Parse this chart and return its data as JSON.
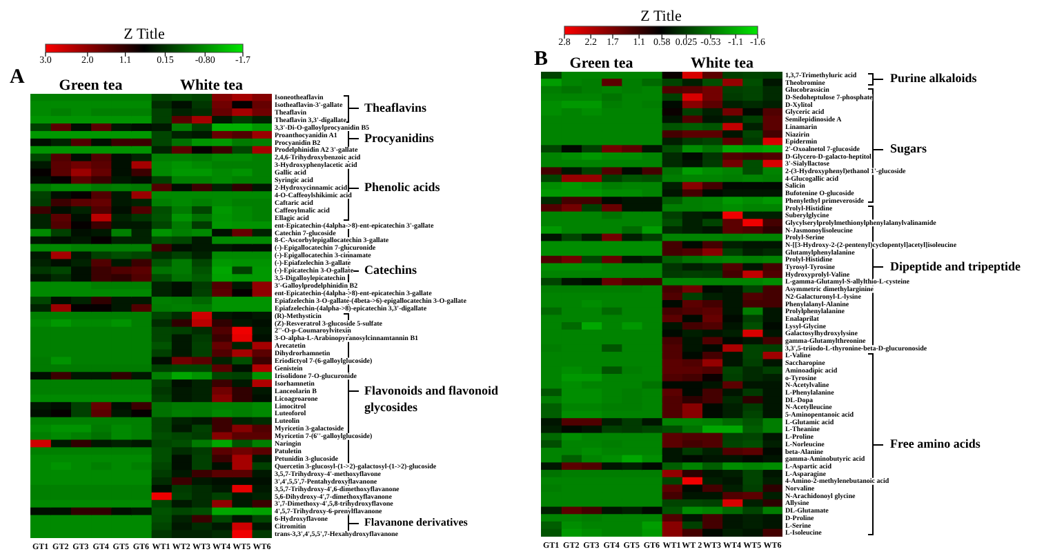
{
  "chart_data": [
    {
      "type": "heatmap",
      "title": "A",
      "clabel": "Z Title",
      "clim": [
        3,
        -1.7
      ],
      "cticks": [
        {
          "value": 3,
          "label": "3.0"
        },
        {
          "value": 2,
          "label": "2.0"
        },
        1.1,
        0.15,
        {
          "value": -0.8,
          "label": "-0.80"
        },
        -1.7
      ],
      "annotations": [
        "Green tea",
        "White tea",
        "Theaflavins",
        "Procyanidins",
        "Phenolic acids",
        "Catechins",
        "Flavonoids and flavonoid glycosides",
        "Flavanone derivatives"
      ],
      "categories": [
        "GT1",
        "GT2",
        "GT3",
        "GT4",
        "GT5",
        "GT6",
        "WT1",
        "WT2",
        "WT3",
        "WT4",
        "WT5",
        "WT6"
      ],
      "y_categories": [
        "Isoneotheaflavin",
        "Isotheaflavin-3'-gallate",
        "Theaflavin",
        "Theaflavin 3,3'-digallate",
        "3,3'-Di-O-galloylprocyanidin B5",
        "Proanthocyanidin A1",
        "Procyanidin B2",
        "Prodelphinidin A2 3'-gallate",
        "2,4,6-Trihydroxybenzoic acid",
        "3-Hydroxyphenylacetic acid",
        "Gallic acid",
        "Syringic acid",
        "2-Hydroxycinnamic acid",
        "4-O-Caffeoylshikimic acid",
        "Caftaric acid",
        "Caffeoylmalic acid",
        "Ellagic acid",
        "ent-Epicatechin-(4alpha->8)-ent-epicatechin 3'-gallate",
        "Catechin 7-glucoside",
        "8-C-Ascorbylepigallocatechin 3-gallate",
        "(-)-Epigallocatechin 7-glucuronide",
        "(-)-Epigallocatechin 3-cinnamate",
        "(-)-Epiafzelechin 3-gallate",
        "(-)-Epicatechin 3-O-gallate",
        "3,5-Digalloylepicatechin",
        "3'-Galloylprodelphinidin B2",
        "ent-Epicatechin-(4alpha->8)-ent-epicatechin 3-gallate",
        "Epiafzelechin 3-O-gallate-(4beta->6)-epigallocatechin 3-O-gallate",
        "Epiafzelechin-(4alpha->8)-epicatechin 3,3'-digallate",
        "(R)-Methysticin",
        "(Z)-Resveratrol 3-glucoside 5-sulfate",
        "2''-O-p-Coumaroylvitexin",
        "3-O-alpha-L-Arabinopyranosylcinnamtannin B1",
        "Arecatetin",
        "Dihydrorhamnetin",
        "Eriodictyol 7-(6-galloylglucoside)",
        "Genistein",
        "Irisolidone 7-O-glucuronide",
        "Isorhamnetin",
        "Lanceolarin B",
        "Licoagroarone",
        "Limocitrol",
        "Luteoforol",
        "Luteolin",
        "Myricetin 3-galactoside",
        "Myricetin 7-(6''-galloylglucoside)",
        "Naringin",
        "Patuletin",
        "Petunidin 3-glucoside",
        "Quercetin 3-glucosyl-(1->2)-galactosyl-(1->2)-glucoside",
        "3,5,7-Trihydroxy-4'-methoxyflavone",
        "3',4',5,5',7-Pentahydroxyflavanone",
        "3,5,7-Trihydroxy-4',6-dimethoxyflavanone",
        "5,6-Dihydroxy-4',7-dimethoxyflavanone",
        "3',7-Dimethoxy-4',5,8-trihydroxyflavone",
        "4',5,7-Trihydroxy-6-prenylflavanone",
        "6-Hydroxyflavone",
        "Citromitin",
        "trans-3,3',4',5,5',7-Hexahydroxyflavanone"
      ],
      "cells": [
        [
          -0.65,
          -0.65,
          -0.65,
          -0.65,
          -0.65,
          -0.65,
          -0.05,
          -0.15,
          -0.05,
          1.9,
          2.2,
          1.9
        ],
        [
          -0.75,
          -0.75,
          -0.75,
          -0.75,
          -0.75,
          -0.75,
          0.2,
          0.5,
          0.1,
          1.7,
          0.7,
          1.6
        ],
        [
          -0.75,
          -0.65,
          -0.75,
          -0.65,
          -0.65,
          -0.65,
          0.0,
          0.3,
          0.2,
          1.6,
          2.2,
          1.7
        ],
        [
          -0.85,
          -0.85,
          -0.85,
          -0.85,
          -0.85,
          -0.85,
          0.0,
          1.5,
          2.2,
          0.4,
          0.05,
          0.3
        ],
        [
          0.0,
          1.5,
          0.5,
          1.5,
          0.4,
          0.5,
          0.4,
          -0.6,
          0.0,
          -1.15,
          -1.15,
          -0.9
        ],
        [
          -0.9,
          -0.9,
          -0.9,
          -0.9,
          -0.9,
          -0.9,
          -0.05,
          0.3,
          0.4,
          1.6,
          1.4,
          2.1
        ],
        [
          0.5,
          0.3,
          1.4,
          0.5,
          1.2,
          1.2,
          -0.05,
          -0.5,
          -0.85,
          -0.9,
          -0.6,
          -0.65
        ],
        [
          -0.85,
          -0.85,
          -0.85,
          -0.85,
          -0.85,
          -0.85,
          0.3,
          1.5,
          0.7,
          1.2,
          -0.05,
          2.2
        ],
        [
          -0.05,
          1.4,
          0.5,
          1.4,
          0.5,
          0.3,
          -0.65,
          -0.65,
          -0.6,
          -0.75,
          -0.75,
          -0.65
        ],
        [
          0.4,
          1.5,
          1.7,
          1.5,
          0.5,
          2.2,
          -0.75,
          -0.85,
          -0.75,
          -0.65,
          -0.65,
          -0.65
        ],
        [
          0.7,
          1.5,
          2.1,
          1.6,
          0.5,
          1.2,
          -0.75,
          -0.9,
          -0.9,
          -0.75,
          -0.85,
          -0.65
        ],
        [
          0.5,
          0.7,
          1.5,
          1.2,
          0.4,
          0.5,
          0.0,
          -0.65,
          -0.65,
          -0.75,
          -0.65,
          -0.65
        ],
        [
          -0.6,
          -0.75,
          -0.75,
          -0.6,
          -0.65,
          -0.6,
          1.4,
          0.5,
          1.2,
          0.3,
          1.1,
          0.4
        ],
        [
          0.0,
          0.5,
          0.7,
          1.4,
          0.4,
          2.1,
          -0.75,
          -0.75,
          -0.75,
          -0.75,
          -0.75,
          -0.75
        ],
        [
          0.05,
          1.2,
          1.5,
          1.6,
          0.4,
          0.3,
          -0.65,
          -0.75,
          -0.65,
          -0.75,
          -0.65,
          -0.65
        ],
        [
          1.2,
          0.5,
          0.3,
          1.4,
          0.5,
          1.4,
          -0.15,
          -0.6,
          -0.05,
          -0.9,
          -0.75,
          -0.65
        ],
        [
          0.3,
          1.5,
          0.5,
          2.4,
          0.3,
          0.1,
          -0.2,
          -0.85,
          -0.5,
          -0.85,
          -0.75,
          -0.65
        ],
        [
          0.3,
          1.4,
          0.7,
          1.2,
          0.4,
          0.4,
          -0.05,
          -0.6,
          0.05,
          -0.9,
          -0.85,
          -0.85
        ],
        [
          -0.75,
          0.0,
          0.5,
          0.4,
          -0.65,
          0.3,
          -0.85,
          -0.65,
          -0.75,
          0.5,
          1.6,
          0.3
        ],
        [
          0.4,
          0.5,
          0.4,
          0.7,
          0.3,
          0.3,
          -0.15,
          -0.05,
          0.4,
          -0.75,
          -0.75,
          -0.75
        ],
        [
          -0.75,
          -0.75,
          -0.65,
          -0.65,
          -0.65,
          -0.65,
          1.2,
          0.5,
          0.4,
          0.4,
          0.5,
          0.5
        ],
        [
          0.4,
          2.2,
          0.4,
          0.0,
          -0.15,
          -0.05,
          0.2,
          0.0,
          0.3,
          -0.75,
          -0.75,
          -0.75
        ],
        [
          0.3,
          0.5,
          0.3,
          1.4,
          0.4,
          1.2,
          -0.2,
          -0.6,
          -0.05,
          -0.9,
          -0.85,
          -0.85
        ],
        [
          0.1,
          -0.05,
          0.5,
          1.2,
          1.4,
          1.5,
          -0.5,
          -0.6,
          -0.2,
          -1.05,
          0.0,
          -0.9
        ],
        [
          0.4,
          0.2,
          0.5,
          1.2,
          1.1,
          1.4,
          -0.15,
          -0.5,
          -0.3,
          -1.0,
          -0.9,
          -0.9
        ],
        [
          -0.75,
          -0.75,
          -0.75,
          -0.65,
          -0.65,
          -0.65,
          0.3,
          0.5,
          0.05,
          1.4,
          0.4,
          2.0
        ],
        [
          -0.75,
          -0.75,
          -0.75,
          -0.75,
          -0.75,
          -0.75,
          0.3,
          0.5,
          0.0,
          1.5,
          0.7,
          2.0
        ],
        [
          -0.05,
          0.5,
          0.3,
          1.1,
          0.4,
          0.4,
          -0.65,
          -0.6,
          -0.4,
          -0.85,
          -0.85,
          -0.85
        ],
        [
          0.3,
          2.1,
          0.7,
          0.7,
          0.4,
          1.4,
          -0.6,
          -0.65,
          -0.6,
          -0.85,
          -0.85,
          -0.85
        ],
        [
          -0.65,
          -0.65,
          -0.65,
          -0.65,
          -0.65,
          -0.65,
          -0.05,
          0.2,
          2.6,
          0.4,
          0.5,
          0.4
        ],
        [
          -0.75,
          -0.9,
          -0.75,
          -0.75,
          -0.85,
          -0.65,
          0.2,
          1.1,
          2.4,
          1.1,
          0.4,
          0.5
        ],
        [
          -0.65,
          -0.65,
          -0.65,
          -0.65,
          -0.65,
          -0.65,
          -0.05,
          0.0,
          0.2,
          1.4,
          2.9,
          0.4
        ],
        [
          -0.65,
          -0.65,
          -0.65,
          -0.65,
          -0.65,
          -0.65,
          -0.05,
          0.4,
          0.05,
          1.2,
          2.8,
          0.5
        ],
        [
          -0.65,
          -0.65,
          -0.65,
          -0.65,
          -0.65,
          -0.65,
          -0.2,
          0.4,
          0.0,
          1.6,
          0.3,
          2.2
        ],
        [
          -0.65,
          -0.65,
          -0.65,
          -0.65,
          -0.65,
          -0.65,
          0.0,
          0.4,
          0.0,
          1.4,
          2.2,
          1.5
        ],
        [
          -0.6,
          -0.85,
          -0.65,
          -0.65,
          -0.65,
          -0.65,
          0.5,
          1.7,
          1.5,
          0.3,
          -0.15,
          1.2
        ],
        [
          -0.6,
          -0.6,
          -0.6,
          -0.6,
          -0.6,
          -0.6,
          0.0,
          -0.05,
          -0.05,
          1.5,
          0.5,
          2.3
        ],
        [
          0.5,
          1.2,
          0.4,
          0.4,
          1.1,
          0.4,
          -0.65,
          -1.05,
          -0.85,
          -0.05,
          0.0,
          -0.85
        ],
        [
          -0.65,
          -0.65,
          -0.65,
          -0.65,
          -0.65,
          -0.65,
          0.0,
          0.5,
          0.3,
          1.2,
          0.4,
          2.3
        ],
        [
          -0.65,
          -0.65,
          -0.65,
          -0.65,
          -0.65,
          -0.65,
          0.1,
          0.4,
          0.3,
          1.7,
          1.1,
          0.4
        ],
        [
          -0.75,
          -0.75,
          -0.75,
          -0.75,
          -0.75,
          -0.75,
          0.0,
          0.4,
          0.3,
          1.9,
          1.1,
          0.5
        ],
        [
          0.4,
          0.5,
          0.0,
          1.6,
          0.5,
          1.2,
          -0.5,
          -0.6,
          -0.6,
          -0.65,
          -0.65,
          -0.75
        ],
        [
          0.5,
          0.7,
          0.0,
          1.5,
          0.4,
          0.7,
          -0.5,
          -0.65,
          -0.6,
          -0.75,
          -0.65,
          -0.75
        ],
        [
          -0.65,
          -0.65,
          -0.65,
          -0.65,
          -0.65,
          -0.65,
          -0.05,
          0.3,
          0.4,
          1.2,
          0.3,
          0.2
        ],
        [
          -0.75,
          -0.85,
          -0.85,
          -0.6,
          -0.75,
          -0.65,
          -0.05,
          0.4,
          0.0,
          1.2,
          1.9,
          1.4
        ],
        [
          -0.65,
          -0.75,
          -0.65,
          -0.5,
          -0.75,
          -0.65,
          -0.15,
          -0.05,
          0.05,
          1.9,
          1.5,
          1.5
        ],
        [
          2.6,
          0.4,
          1.1,
          0.4,
          0.3,
          0.4,
          -0.05,
          -0.15,
          -0.6,
          -1.05,
          -0.2,
          -0.65
        ],
        [
          -0.65,
          -0.65,
          -0.65,
          -0.65,
          -0.65,
          -0.65,
          -0.15,
          0.2,
          0.05,
          1.5,
          1.7,
          1.5
        ],
        [
          -0.75,
          -0.75,
          -0.75,
          -0.75,
          -0.75,
          -0.75,
          -0.15,
          0.5,
          0.0,
          1.2,
          2.2,
          0.4
        ],
        [
          -0.75,
          -0.85,
          -0.75,
          -0.65,
          -0.75,
          -0.65,
          -0.05,
          0.5,
          0.0,
          0.5,
          2.2,
          0.0
        ],
        [
          -0.75,
          -0.75,
          -0.75,
          -0.75,
          -0.75,
          -0.75,
          0.05,
          0.4,
          1.2,
          1.5,
          1.5,
          0.4
        ],
        [
          -0.75,
          -0.75,
          -0.75,
          -0.75,
          -0.75,
          -0.75,
          0.2,
          1.2,
          0.4,
          0.5,
          0.5,
          0.5
        ],
        [
          -0.65,
          -0.65,
          -0.65,
          -0.65,
          -0.65,
          -0.65,
          0.5,
          0.05,
          0.2,
          0.4,
          2.8,
          0.4
        ],
        [
          -0.65,
          -0.65,
          -0.65,
          -0.65,
          -0.65,
          -0.65,
          2.9,
          0.0,
          0.2,
          0.0,
          0.4,
          0.3
        ],
        [
          -0.75,
          -0.75,
          -0.75,
          -0.75,
          -0.75,
          -0.75,
          -0.05,
          0.4,
          0.2,
          2.0,
          0.4,
          1.2
        ],
        [
          0.5,
          0.5,
          1.1,
          1.1,
          0.5,
          0.4,
          -0.2,
          -0.05,
          -0.15,
          -1.05,
          -1.05,
          -1.0
        ],
        [
          -0.75,
          -0.75,
          -0.75,
          -0.75,
          -0.75,
          -0.75,
          -0.15,
          0.3,
          1.2,
          -0.05,
          0.4,
          -0.05
        ],
        [
          -0.75,
          -0.75,
          -0.75,
          -0.75,
          -0.75,
          -0.75,
          -0.05,
          0.4,
          0.2,
          0.4,
          2.6,
          0.4
        ],
        [
          -0.75,
          -0.75,
          -0.75,
          -0.75,
          -0.75,
          -0.75,
          0.1,
          0.3,
          0.3,
          0.2,
          2.9,
          0.05
        ]
      ]
    },
    {
      "type": "heatmap",
      "title": "B",
      "clabel": "Z Title",
      "clim": [
        2.8,
        -1.6
      ],
      "cticks": [
        2.8,
        2.2,
        1.7,
        1.1,
        0.58,
        0.025,
        -0.53,
        -1.1,
        -1.6
      ],
      "annotations": [
        "Green tea",
        "White tea",
        "Purine alkaloids",
        "Sugars",
        "Dipeptide and tripeptide",
        "Free amino acids"
      ],
      "categories": [
        "GT1",
        "GT2",
        "GT3",
        "GT4",
        "GT5",
        "GT6",
        "WT1",
        "WT 2",
        "WT3",
        "WT4",
        "WT5",
        "WT6"
      ],
      "y_categories": [
        "1,3,7-Trimethyluric acid",
        "Theobromine",
        "Glucobrassicin",
        "D-Sedoheptulose 7-phosphate",
        "D-Xylitol",
        "Glyceric acid",
        "Semilepidinoside A",
        "Linamarin",
        "Niazirin",
        "Epidermin",
        "2'-Oxoalnetol 7-glucoside",
        "D-Glycero-D-galacto-heptitol",
        "3'-Sialyllactose",
        "2-(3-Hydroxyphenyl)ethanol 1'-glucoside",
        "4-Glucogallic acid",
        "Salicin",
        "Bufotenine O-glucoside",
        "Phenylethyl primeveroside",
        "Prolyl-Histidine",
        "Suberylglycine",
        "Glycylserylprolylmethionylphenylalanylvalinamide",
        "N-Jasmonoylisoleucine",
        "Prolyl-Serine",
        "N-[[3-Hydroxy-2-(2-pentenyl)cyclopentyl]acetyl]isoleucine",
        "Glutamylphenylalanine",
        "Prolyl-Histidine",
        "Tyrosyl-Tyrosine",
        "Hydroxyprolyl-Valine",
        "L-gamma-Glutamyl-S-allylthio-L-cysteine",
        "Asymmetric dimethylarginine",
        "N2-Galacturonyl-L-lysine",
        "Phenylalanyl-Alanine",
        "Prolylphenylalanine",
        "Enalaprilat",
        "Lysyl-Glycine",
        "Galactosylhydroxylysine",
        "gamma-Glutamylthreonine",
        "3,3',5-triiodo-L-thyronine-beta-D-glucuronoside",
        "L-Valine",
        "Saccharopine",
        "Aminoadipic acid",
        "o-Tyrosine",
        "N-Acetylvaline",
        "L-Phenylalanine",
        "DL-Dopa",
        "N-Acetylleucine",
        "5-Aminopentanoic acid",
        "L-Glutamic acid",
        "L-Theanine",
        "L-Proline",
        "L-Norleucine",
        "beta-Alanine",
        "gamma-Aminobutyric acid",
        "L-Aspartic acid",
        "L-Asparagine",
        "4-Amino-2-methylenebutanoic acid",
        "Norvaline",
        "N-Arachidonoyl glycine",
        "Allysine",
        "DL-Glutamate",
        "D-Proline",
        "L-Serine",
        "L-Isoleucine"
      ],
      "cells": [
        [
          -0.05,
          -0.65,
          -0.65,
          -0.65,
          -0.65,
          -0.65,
          0.7,
          2.5,
          1.4,
          0.0,
          -0.05,
          0.0
        ],
        [
          -0.9,
          -0.65,
          -0.6,
          1.4,
          -0.6,
          -0.4,
          -0.05,
          0.3,
          -0.15,
          1.9,
          -0.15,
          0.4
        ],
        [
          -0.6,
          -0.5,
          -0.6,
          -0.65,
          -0.6,
          -0.65,
          1.3,
          1.4,
          1.6,
          0.0,
          -0.05,
          0.2
        ],
        [
          -0.65,
          -0.65,
          -0.65,
          -0.5,
          -0.65,
          -0.65,
          0.0,
          2.5,
          1.6,
          0.05,
          -0.05,
          0.2
        ],
        [
          -0.75,
          -0.85,
          -0.85,
          -0.6,
          -0.65,
          -0.6,
          0.5,
          1.8,
          1.4,
          0.3,
          0.2,
          0.3
        ],
        [
          -0.75,
          -0.65,
          -0.75,
          -0.65,
          -0.65,
          -0.65,
          0.7,
          0.0,
          0.3,
          1.6,
          0.5,
          1.3
        ],
        [
          -0.65,
          -0.65,
          -0.65,
          -0.65,
          -0.65,
          -0.65,
          0.4,
          1.3,
          0.4,
          0.3,
          0.0,
          1.4
        ],
        [
          -0.65,
          -0.65,
          -0.65,
          -0.65,
          -0.65,
          -0.65,
          -0.2,
          -0.3,
          -0.2,
          2.3,
          0.3,
          1.4
        ],
        [
          -0.65,
          -0.65,
          -0.65,
          -0.65,
          -0.65,
          -0.65,
          1.2,
          1.4,
          1.4,
          0.4,
          -0.05,
          1.2
        ],
        [
          -0.65,
          -0.65,
          -0.65,
          -0.65,
          -0.65,
          -0.65,
          0.3,
          0.05,
          -0.05,
          1.4,
          0.05,
          2.5
        ],
        [
          -0.05,
          0.5,
          0.0,
          1.6,
          1.4,
          0.4,
          -0.15,
          -0.75,
          -0.5,
          -1.0,
          -0.9,
          -1.0
        ],
        [
          -0.65,
          -0.75,
          -0.85,
          -0.75,
          -0.75,
          -0.65,
          0.2,
          0.5,
          0.1,
          1.3,
          1.2,
          1.3
        ],
        [
          -0.65,
          -0.65,
          -0.65,
          -0.65,
          -0.65,
          -0.65,
          0.2,
          0.4,
          0.05,
          1.6,
          -0.15,
          2.5
        ],
        [
          1.2,
          0.4,
          0.0,
          1.3,
          0.5,
          1.2,
          -0.5,
          -0.9,
          -0.75,
          -0.65,
          -0.15,
          -0.65
        ],
        [
          -0.05,
          1.9,
          1.9,
          0.0,
          -0.2,
          -0.15,
          -0.6,
          -0.65,
          -0.65,
          -0.6,
          -0.65,
          -0.6
        ],
        [
          -0.75,
          -0.85,
          -0.75,
          -0.6,
          -0.65,
          -0.65,
          0.3,
          1.8,
          1.2,
          0.5,
          0.5,
          0.5
        ],
        [
          -0.85,
          -0.85,
          -0.85,
          -0.75,
          -0.75,
          -0.65,
          0.4,
          1.2,
          0.5,
          0.4,
          0.4,
          0.4
        ],
        [
          0.2,
          1.2,
          1.2,
          0.5,
          0.4,
          0.4,
          -0.3,
          -0.6,
          -0.65,
          -0.85,
          -0.75,
          -0.85
        ],
        [
          1.3,
          1.6,
          0.0,
          1.5,
          0.4,
          0.4,
          -0.6,
          -0.6,
          -0.65,
          -0.75,
          -0.65,
          -0.65
        ],
        [
          -0.65,
          -0.65,
          -0.65,
          -0.5,
          -0.65,
          -0.65,
          0.0,
          0.3,
          0.4,
          2.7,
          0.3,
          0.3
        ],
        [
          -0.65,
          -0.65,
          -0.65,
          -0.65,
          -0.65,
          -0.65,
          -0.15,
          0.3,
          -0.05,
          1.4,
          2.7,
          1.2
        ],
        [
          -0.85,
          -0.65,
          -0.65,
          -0.65,
          -0.4,
          -0.9,
          0.2,
          0.3,
          0.4,
          1.4,
          1.3,
          1.0
        ],
        [
          0.4,
          -0.05,
          0.3,
          1.6,
          0.3,
          0.0,
          -0.65,
          -0.65,
          -0.65,
          -0.6,
          -0.65,
          -0.65
        ],
        [
          -0.75,
          -0.75,
          -0.75,
          -0.75,
          -0.75,
          -0.75,
          1.2,
          0.5,
          1.2,
          0.3,
          0.4,
          0.4
        ],
        [
          -0.75,
          -0.75,
          -0.75,
          -0.75,
          -0.75,
          -0.75,
          1.2,
          1.3,
          1.8,
          0.0,
          0.3,
          0.2
        ],
        [
          1.3,
          1.6,
          -0.05,
          1.5,
          0.4,
          0.3,
          -0.3,
          -0.5,
          -0.6,
          -0.65,
          -0.6,
          -0.65
        ],
        [
          -0.75,
          -0.75,
          -0.75,
          -0.65,
          -0.65,
          -0.65,
          0.1,
          0.3,
          0.2,
          1.3,
          0.4,
          1.2
        ],
        [
          -0.65,
          -0.65,
          -0.65,
          -0.65,
          -0.65,
          -0.65,
          0.05,
          0.0,
          0.05,
          1.2,
          2.3,
          1.3
        ],
        [
          -0.05,
          0.4,
          0.5,
          1.5,
          1.2,
          1.2,
          -0.65,
          -0.65,
          -0.65,
          -0.65,
          -0.65,
          -0.75
        ],
        [
          -0.6,
          -0.6,
          -0.6,
          -0.6,
          -0.6,
          -0.65,
          1.2,
          1.6,
          0.5,
          0.4,
          -0.05,
          1.2
        ],
        [
          -0.65,
          -0.65,
          -0.65,
          -0.65,
          -0.65,
          -0.65,
          1.3,
          0.0,
          0.3,
          0.4,
          1.3,
          1.2
        ],
        [
          -0.65,
          -0.65,
          -0.75,
          -0.65,
          -0.65,
          -0.65,
          0.5,
          1.4,
          1.2,
          0.4,
          1.2,
          1.2
        ],
        [
          -0.4,
          -0.65,
          -0.65,
          -0.4,
          -0.65,
          -0.65,
          1.2,
          1.3,
          1.4,
          0.4,
          -0.6,
          0.4
        ],
        [
          -0.65,
          -0.65,
          -0.65,
          -0.65,
          -0.65,
          -0.65,
          1.4,
          0.5,
          1.5,
          0.5,
          0.0,
          0.4
        ],
        [
          -0.65,
          -0.4,
          -1.0,
          -0.65,
          -0.85,
          -0.65,
          0.4,
          1.2,
          1.3,
          0.4,
          -0.15,
          0.5
        ],
        [
          -0.65,
          -0.65,
          -0.65,
          -0.65,
          -0.65,
          -0.65,
          0.5,
          0.3,
          0.4,
          0.3,
          2.5,
          0.4
        ],
        [
          -0.65,
          -0.65,
          -0.65,
          -0.65,
          -0.65,
          -0.65,
          1.2,
          0.4,
          1.3,
          0.5,
          0.4,
          1.2
        ],
        [
          -0.6,
          -0.65,
          -0.65,
          -0.2,
          -0.65,
          -0.65,
          1.3,
          0.4,
          0.5,
          2.1,
          -0.05,
          0.0
        ],
        [
          -0.65,
          -0.65,
          -0.65,
          -0.65,
          -0.65,
          -0.65,
          1.3,
          0.5,
          1.2,
          0.4,
          -0.05,
          2.0
        ],
        [
          -0.65,
          -0.65,
          -0.65,
          -0.65,
          -0.65,
          -0.65,
          1.4,
          1.3,
          1.9,
          0.4,
          0.0,
          0.4
        ],
        [
          -0.65,
          -0.75,
          -0.65,
          -0.2,
          -0.6,
          -0.65,
          1.4,
          1.4,
          1.3,
          -0.05,
          0.2,
          0.0
        ],
        [
          -0.65,
          -0.85,
          -0.85,
          -0.65,
          -0.65,
          -0.65,
          1.3,
          1.2,
          0.7,
          0.0,
          0.2,
          0.3
        ],
        [
          -0.65,
          -0.75,
          -0.65,
          -0.65,
          -0.65,
          -0.5,
          0.5,
          0.5,
          0.4,
          1.4,
          0.4,
          0.4
        ],
        [
          -0.2,
          -0.75,
          -0.75,
          -0.65,
          -0.6,
          -0.65,
          1.4,
          0.5,
          1.2,
          0.4,
          0.05,
          0.4
        ],
        [
          -0.6,
          -0.75,
          -0.75,
          -0.65,
          -0.6,
          -0.65,
          1.3,
          1.0,
          1.2,
          0.2,
          1.0,
          0.4
        ],
        [
          -0.3,
          -0.65,
          -0.65,
          -0.6,
          -0.6,
          -0.65,
          1.3,
          1.8,
          0.5,
          0.3,
          0.05,
          0.4
        ],
        [
          -0.3,
          -0.75,
          -0.75,
          -0.65,
          -0.65,
          -0.65,
          1.3,
          1.8,
          0.5,
          0.3,
          -0.05,
          0.4
        ],
        [
          0.4,
          1.3,
          1.3,
          0.3,
          0.05,
          0.4,
          -0.65,
          -0.65,
          -0.6,
          -0.4,
          -0.2,
          -0.6
        ],
        [
          0.3,
          0.5,
          0.4,
          0.0,
          0.05,
          -0.05,
          -0.15,
          -0.5,
          -1.0,
          -1.0,
          -0.3,
          -0.6
        ],
        [
          -0.4,
          -0.75,
          -0.65,
          -0.65,
          -0.65,
          -0.65,
          1.4,
          1.3,
          1.3,
          0.0,
          -0.05,
          0.4
        ],
        [
          -0.15,
          -0.65,
          -0.65,
          -0.6,
          -0.65,
          -0.65,
          1.4,
          1.2,
          1.3,
          -0.05,
          -0.15,
          0.3
        ],
        [
          -0.65,
          -0.65,
          -0.75,
          -0.65,
          -0.65,
          -0.65,
          0.4,
          0.05,
          0.3,
          1.3,
          1.4,
          0.5
        ],
        [
          -0.65,
          -0.3,
          -0.65,
          -0.75,
          -1.0,
          -0.75,
          0.4,
          0.5,
          0.4,
          0.4,
          0.5,
          0.4
        ],
        [
          0.4,
          1.4,
          1.3,
          0.4,
          0.3,
          0.5,
          -0.3,
          -0.65,
          -0.3,
          -0.75,
          -0.65,
          -0.75
        ],
        [
          -0.5,
          -0.6,
          -0.6,
          -0.6,
          -0.6,
          -0.6,
          1.9,
          1.0,
          0.4,
          0.3,
          -0.05,
          0.4
        ],
        [
          -0.65,
          -0.65,
          -0.65,
          -0.65,
          -0.65,
          -0.65,
          -0.05,
          2.7,
          0.3,
          0.4,
          -0.05,
          0.3
        ],
        [
          -0.6,
          -0.65,
          -0.65,
          -0.65,
          -0.65,
          -0.65,
          1.4,
          0.5,
          1.2,
          0.3,
          0.0,
          1.0
        ],
        [
          -0.65,
          -0.65,
          -0.65,
          -0.65,
          -0.65,
          -0.65,
          1.2,
          0.4,
          0.4,
          1.3,
          1.4,
          0.3
        ],
        [
          -0.65,
          -0.65,
          -0.65,
          -0.65,
          -0.65,
          -0.65,
          -0.05,
          -0.05,
          0.0,
          2.5,
          0.3,
          1.0
        ],
        [
          0.3,
          1.4,
          1.2,
          0.4,
          0.3,
          0.5,
          -0.2,
          -0.75,
          -0.65,
          -0.4,
          -0.05,
          -0.6
        ],
        [
          -0.65,
          -0.65,
          -0.6,
          -0.65,
          -0.65,
          -0.65,
          1.3,
          0.4,
          1.2,
          0.4,
          0.3,
          0.4
        ],
        [
          -0.3,
          -0.75,
          -0.65,
          -0.65,
          -0.65,
          -0.9,
          1.8,
          0.0,
          1.2,
          0.4,
          0.3,
          0.4
        ],
        [
          -0.2,
          -0.85,
          -0.75,
          -0.65,
          -0.65,
          -0.85,
          1.8,
          1.2,
          0.5,
          0.3,
          0.4,
          1.2
        ]
      ]
    }
  ]
}
